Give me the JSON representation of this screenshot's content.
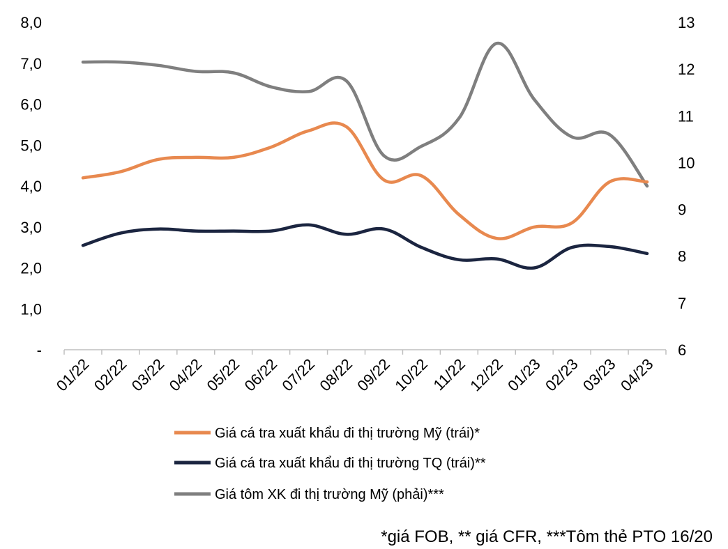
{
  "chart_data": {
    "type": "line",
    "categories": [
      "01/22",
      "02/22",
      "03/22",
      "04/22",
      "05/22",
      "06/22",
      "07/22",
      "08/22",
      "09/22",
      "10/22",
      "11/22",
      "12/22",
      "01/23",
      "02/23",
      "03/23",
      "04/23"
    ],
    "y_left": {
      "ticks": [
        "-",
        "1,0",
        "2,0",
        "3,0",
        "4,0",
        "5,0",
        "6,0",
        "7,0",
        "8,0"
      ],
      "ylim": [
        0,
        8
      ]
    },
    "y_right": {
      "ticks": [
        "6",
        "7",
        "8",
        "9",
        "10",
        "11",
        "12",
        "13"
      ],
      "ylim": [
        6,
        13
      ]
    },
    "series": [
      {
        "name": "Giá cá tra xuất khẩu đi thị trường Mỹ (trái)*",
        "axis": "left",
        "color": "#E8894F",
        "values": [
          4.2,
          4.35,
          4.65,
          4.7,
          4.7,
          4.95,
          5.35,
          5.45,
          4.15,
          4.25,
          3.3,
          2.72,
          3.0,
          3.1,
          4.1,
          4.1
        ]
      },
      {
        "name": "Giá cá tra xuất khẩu đi thị trường TQ (trái)**",
        "axis": "left",
        "color": "#1B2540",
        "values": [
          2.55,
          2.85,
          2.95,
          2.9,
          2.9,
          2.9,
          3.05,
          2.82,
          2.95,
          2.5,
          2.2,
          2.22,
          2.0,
          2.5,
          2.52,
          2.35
        ]
      },
      {
        "name": "Giá tôm XK đi thị trường Mỹ (phải)***",
        "axis": "right",
        "color": "#7F7F7F",
        "values": [
          12.15,
          12.15,
          12.08,
          11.95,
          11.92,
          11.62,
          11.52,
          11.75,
          10.15,
          10.35,
          10.95,
          12.55,
          11.35,
          10.55,
          10.6,
          9.5
        ]
      }
    ],
    "legend_position": "bottom",
    "grid": false
  },
  "footnote": "*giá FOB, ** giá CFR, ***Tôm thẻ PTO 16/20"
}
